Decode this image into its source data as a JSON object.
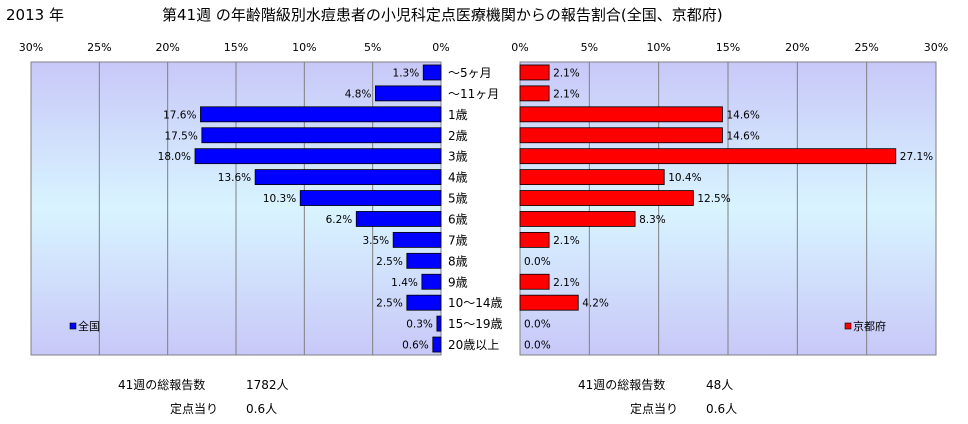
{
  "year_label": "2013 年",
  "title": "第41週 の年齢階級別水痘患者の小児科定点医療機関からの報告割合(全国、京都府)",
  "chart_data": [
    {
      "type": "bar",
      "orientation": "horizontal",
      "direction": "right-to-left",
      "series_name": "全国",
      "color": "#0000ff",
      "xlim": [
        0,
        30
      ],
      "ticks": [
        "30%",
        "25%",
        "20%",
        "15%",
        "10%",
        "5%",
        "0%"
      ],
      "tick_values": [
        30,
        25,
        20,
        15,
        10,
        5,
        0
      ],
      "categories": [
        "～5ヶ月",
        "～11ヶ月",
        "1歳",
        "2歳",
        "3歳",
        "4歳",
        "5歳",
        "6歳",
        "7歳",
        "8歳",
        "9歳",
        "10～14歳",
        "15～19歳",
        "20歳以上"
      ],
      "values": [
        1.3,
        4.8,
        17.6,
        17.5,
        18.0,
        13.6,
        10.3,
        6.2,
        3.5,
        2.5,
        1.4,
        2.5,
        0.3,
        0.6
      ],
      "labels": [
        "1.3%",
        "4.8%",
        "17.6%",
        "17.5%",
        "18.0%",
        "13.6%",
        "10.3%",
        "6.2%",
        "3.5%",
        "2.5%",
        "1.4%",
        "2.5%",
        "0.3%",
        "0.6%"
      ],
      "legend_position": "bottom-left",
      "grid": true
    },
    {
      "type": "bar",
      "orientation": "horizontal",
      "direction": "left-to-right",
      "series_name": "京都府",
      "color": "#ff0000",
      "xlim": [
        0,
        30
      ],
      "ticks": [
        "0%",
        "5%",
        "10%",
        "15%",
        "20%",
        "25%",
        "30%"
      ],
      "tick_values": [
        0,
        5,
        10,
        15,
        20,
        25,
        30
      ],
      "categories": [
        "～5ヶ月",
        "～11ヶ月",
        "1歳",
        "2歳",
        "3歳",
        "4歳",
        "5歳",
        "6歳",
        "7歳",
        "8歳",
        "9歳",
        "10～14歳",
        "15～19歳",
        "20歳以上"
      ],
      "values": [
        2.1,
        2.1,
        14.6,
        14.6,
        27.1,
        10.4,
        12.5,
        8.3,
        2.1,
        0.0,
        2.1,
        4.2,
        0.0,
        0.0
      ],
      "labels": [
        "2.1%",
        "2.1%",
        "14.6%",
        "14.6%",
        "27.1%",
        "10.4%",
        "12.5%",
        "8.3%",
        "2.1%",
        "0.0%",
        "2.1%",
        "4.2%",
        "0.0%",
        "0.0%"
      ],
      "legend_position": "bottom-right",
      "grid": true
    }
  ],
  "footer": {
    "national": {
      "total_label": "41週の総報告数",
      "total_value": "1782人",
      "per_label": "定点当り",
      "per_value": "0.6人"
    },
    "kyoto": {
      "total_label": "41週の総報告数",
      "total_value": "48人",
      "per_label": "定点当り",
      "per_value": "0.6人"
    }
  }
}
